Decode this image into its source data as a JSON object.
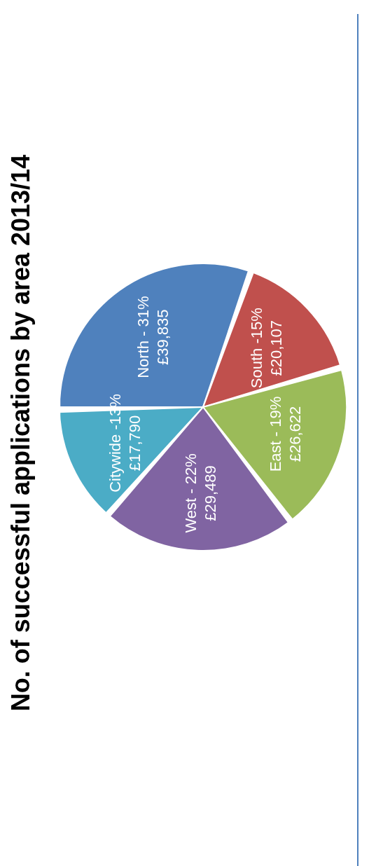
{
  "chart_data": {
    "type": "pie",
    "title": "No. of successful applications by area 2013/14",
    "categories": [
      "North",
      "South",
      "East",
      "West",
      "Citywide"
    ],
    "values": [
      31,
      15,
      19,
      22,
      13
    ],
    "value_labels": [
      "North - 31%",
      "South -15%",
      "East - 19%",
      "West - 22%",
      "Citywide -13%"
    ],
    "amounts": [
      39835,
      20107,
      26622,
      29489,
      17790
    ],
    "amount_labels": [
      "£39,835",
      "£20,107",
      "£26,622",
      "£29,489",
      "£17,790"
    ],
    "colors": [
      "#4f81bd",
      "#c0504d",
      "#9bbb59",
      "#8064a2",
      "#4bacc6"
    ],
    "data_labels": true
  }
}
